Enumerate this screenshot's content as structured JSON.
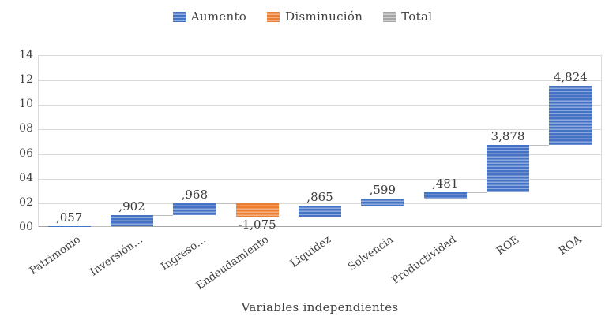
{
  "chart_data": {
    "type": "bar",
    "subtype": "waterfall",
    "title": "",
    "xlabel": "Variables independientes",
    "ylabel": "",
    "ylim": [
      0,
      14
    ],
    "ytick_step": 2,
    "ytick_labels": [
      "00",
      "02",
      "04",
      "06",
      "08",
      "10",
      "12",
      "14"
    ],
    "grid": "horizontal",
    "legend_position": "top",
    "legend": [
      {
        "label": "Aumento",
        "kind": "aumento"
      },
      {
        "label": "Disminución",
        "kind": "disminucion"
      },
      {
        "label": "Total",
        "kind": "total"
      }
    ],
    "bars": [
      {
        "category": "Patrimonio",
        "label": ",057",
        "value": 0.057,
        "start": 0,
        "end": 0.057,
        "kind": "aumento",
        "label_pos": "above"
      },
      {
        "category": "Inversión…",
        "label": ",902",
        "value": 0.902,
        "start": 0.057,
        "end": 0.959,
        "kind": "aumento",
        "label_pos": "above"
      },
      {
        "category": "Ingreso…",
        "label": ",968",
        "value": 0.968,
        "start": 0.959,
        "end": 1.927,
        "kind": "aumento",
        "label_pos": "above"
      },
      {
        "category": "Endeudamiento",
        "label": "-1,075",
        "value": -1.075,
        "start": 1.927,
        "end": 0.852,
        "kind": "disminucion",
        "label_pos": "below"
      },
      {
        "category": "Liquidez",
        "label": ",865",
        "value": 0.865,
        "start": 0.852,
        "end": 1.717,
        "kind": "aumento",
        "label_pos": "above"
      },
      {
        "category": "Solvencia",
        "label": ",599",
        "value": 0.599,
        "start": 1.717,
        "end": 2.316,
        "kind": "aumento",
        "label_pos": "above"
      },
      {
        "category": "Productividad",
        "label": ",481",
        "value": 0.481,
        "start": 2.316,
        "end": 2.797,
        "kind": "aumento",
        "label_pos": "above"
      },
      {
        "category": "ROE",
        "label": "3,878",
        "value": 3.878,
        "start": 2.797,
        "end": 6.675,
        "kind": "aumento",
        "label_pos": "above"
      },
      {
        "category": "ROA",
        "label": "4,824",
        "value": 4.824,
        "start": 6.675,
        "end": 11.499,
        "kind": "aumento",
        "label_pos": "above"
      }
    ],
    "colors": {
      "aumento": "#4472C4",
      "aumento_light": "#8FAADC",
      "disminucion": "#ED7D31",
      "disminucion_light": "#F5B183",
      "total": "#A5A5A5",
      "total_light": "#D0D0D0",
      "gridline": "#D9D9D9",
      "axis_line": "#A6A6A6",
      "connector": "#BFBFBF",
      "text": "#404040"
    }
  }
}
